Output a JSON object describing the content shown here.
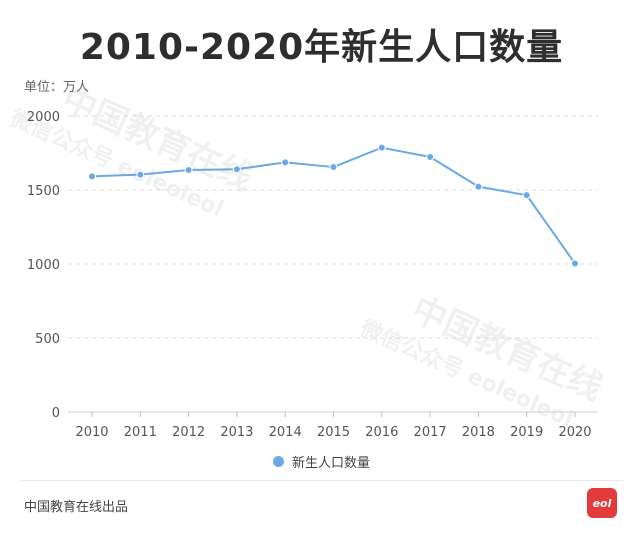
{
  "title": "2010-2020年新生人口数量",
  "unit_label": "单位：万人",
  "footer": "中国教育在线出品",
  "logo_text": "eol",
  "watermark": {
    "line1": "中国教育在线",
    "line2": "微信公众号 eoleoleol"
  },
  "colors": {
    "line": "#6aa9e4",
    "grid": "#dcdcdc",
    "logo": "#e23b3b"
  },
  "chart_data": {
    "type": "line",
    "title": "2010-2020年新生人口数量",
    "ylabel": "单位：万人",
    "x": [
      "2010",
      "2011",
      "2012",
      "2013",
      "2014",
      "2015",
      "2016",
      "2017",
      "2018",
      "2019",
      "2020"
    ],
    "series": [
      {
        "name": "新生人口数量",
        "values": [
          1592,
          1604,
          1635,
          1640,
          1687,
          1655,
          1786,
          1723,
          1523,
          1465,
          1003
        ]
      }
    ],
    "ylim": [
      0,
      2000
    ],
    "yticks": [
      "0",
      "500",
      "1000",
      "1500",
      "2000"
    ],
    "grid": true,
    "legend": "bottom-center"
  }
}
